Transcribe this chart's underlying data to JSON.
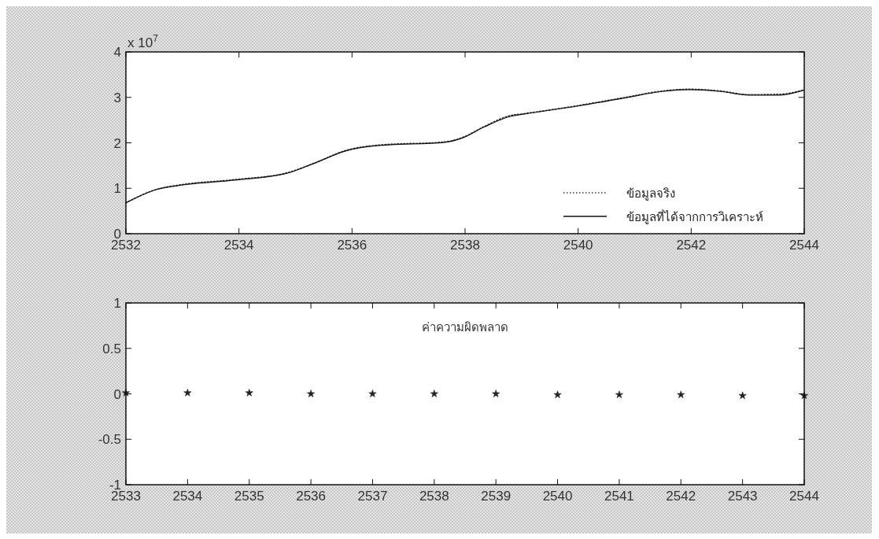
{
  "chart_data": [
    {
      "type": "line",
      "annotations": [
        "x 10$^{7}$"
      ],
      "xlim": [
        2532,
        2544
      ],
      "xticks": [
        2532,
        2534,
        2536,
        2538,
        2540,
        2542,
        2544
      ],
      "ylim": [
        0,
        4
      ],
      "yticks": [
        0,
        1,
        2,
        3,
        4
      ],
      "legend": "bottom right",
      "grid": false,
      "x": [
        2532,
        2532.53,
        2532.99,
        2533.92,
        2534.85,
        2535.31,
        2535.91,
        2536.47,
        2537.64,
        2537.96,
        2538.34,
        2538.8,
        2539.03,
        2540.0,
        2540.79,
        2541.49,
        2541.96,
        2542.52,
        2543.02,
        2543.58,
        2544
      ],
      "series": [
        {
          "name": "ข้อมูลจริง",
          "color": "#333333",
          "line_style": "dotted",
          "values": [
            0.68,
            0.97,
            1.08,
            1.19,
            1.34,
            1.54,
            1.84,
            1.95,
            2.02,
            2.12,
            2.36,
            2.6,
            2.64,
            2.82,
            2.99,
            3.14,
            3.18,
            3.14,
            3.06,
            3.07,
            3.17
          ]
        },
        {
          "name": "ข้อมูลที่ได้จากการวิเคราะห์",
          "color": "#111111",
          "line_style": "solid",
          "values": [
            0.68,
            0.97,
            1.07,
            1.18,
            1.33,
            1.54,
            1.83,
            1.94,
            2.01,
            2.11,
            2.35,
            2.58,
            2.63,
            2.81,
            2.98,
            3.13,
            3.17,
            3.13,
            3.05,
            3.05,
            3.16
          ]
        }
      ]
    },
    {
      "type": "scatter",
      "title": "ค่าความผิดพลาด",
      "xlim": [
        2533,
        2544
      ],
      "xticks": [
        2533,
        2534,
        2535,
        2536,
        2537,
        2538,
        2539,
        2540,
        2541,
        2542,
        2543,
        2544
      ],
      "ylim": [
        -1,
        1
      ],
      "yticks": [
        -1,
        -0.5,
        0,
        0.5,
        1
      ],
      "marker": "star",
      "grid": false,
      "x": [
        2533,
        2534,
        2535,
        2536,
        2537,
        2538,
        2539,
        2540,
        2541,
        2542,
        2543,
        2544
      ],
      "series": [
        {
          "color": "#222222",
          "values": [
            0.01,
            0.01,
            0.01,
            0,
            0,
            0,
            0,
            -0.01,
            -0.01,
            -0.01,
            -0.02,
            -0.02
          ]
        }
      ]
    }
  ]
}
